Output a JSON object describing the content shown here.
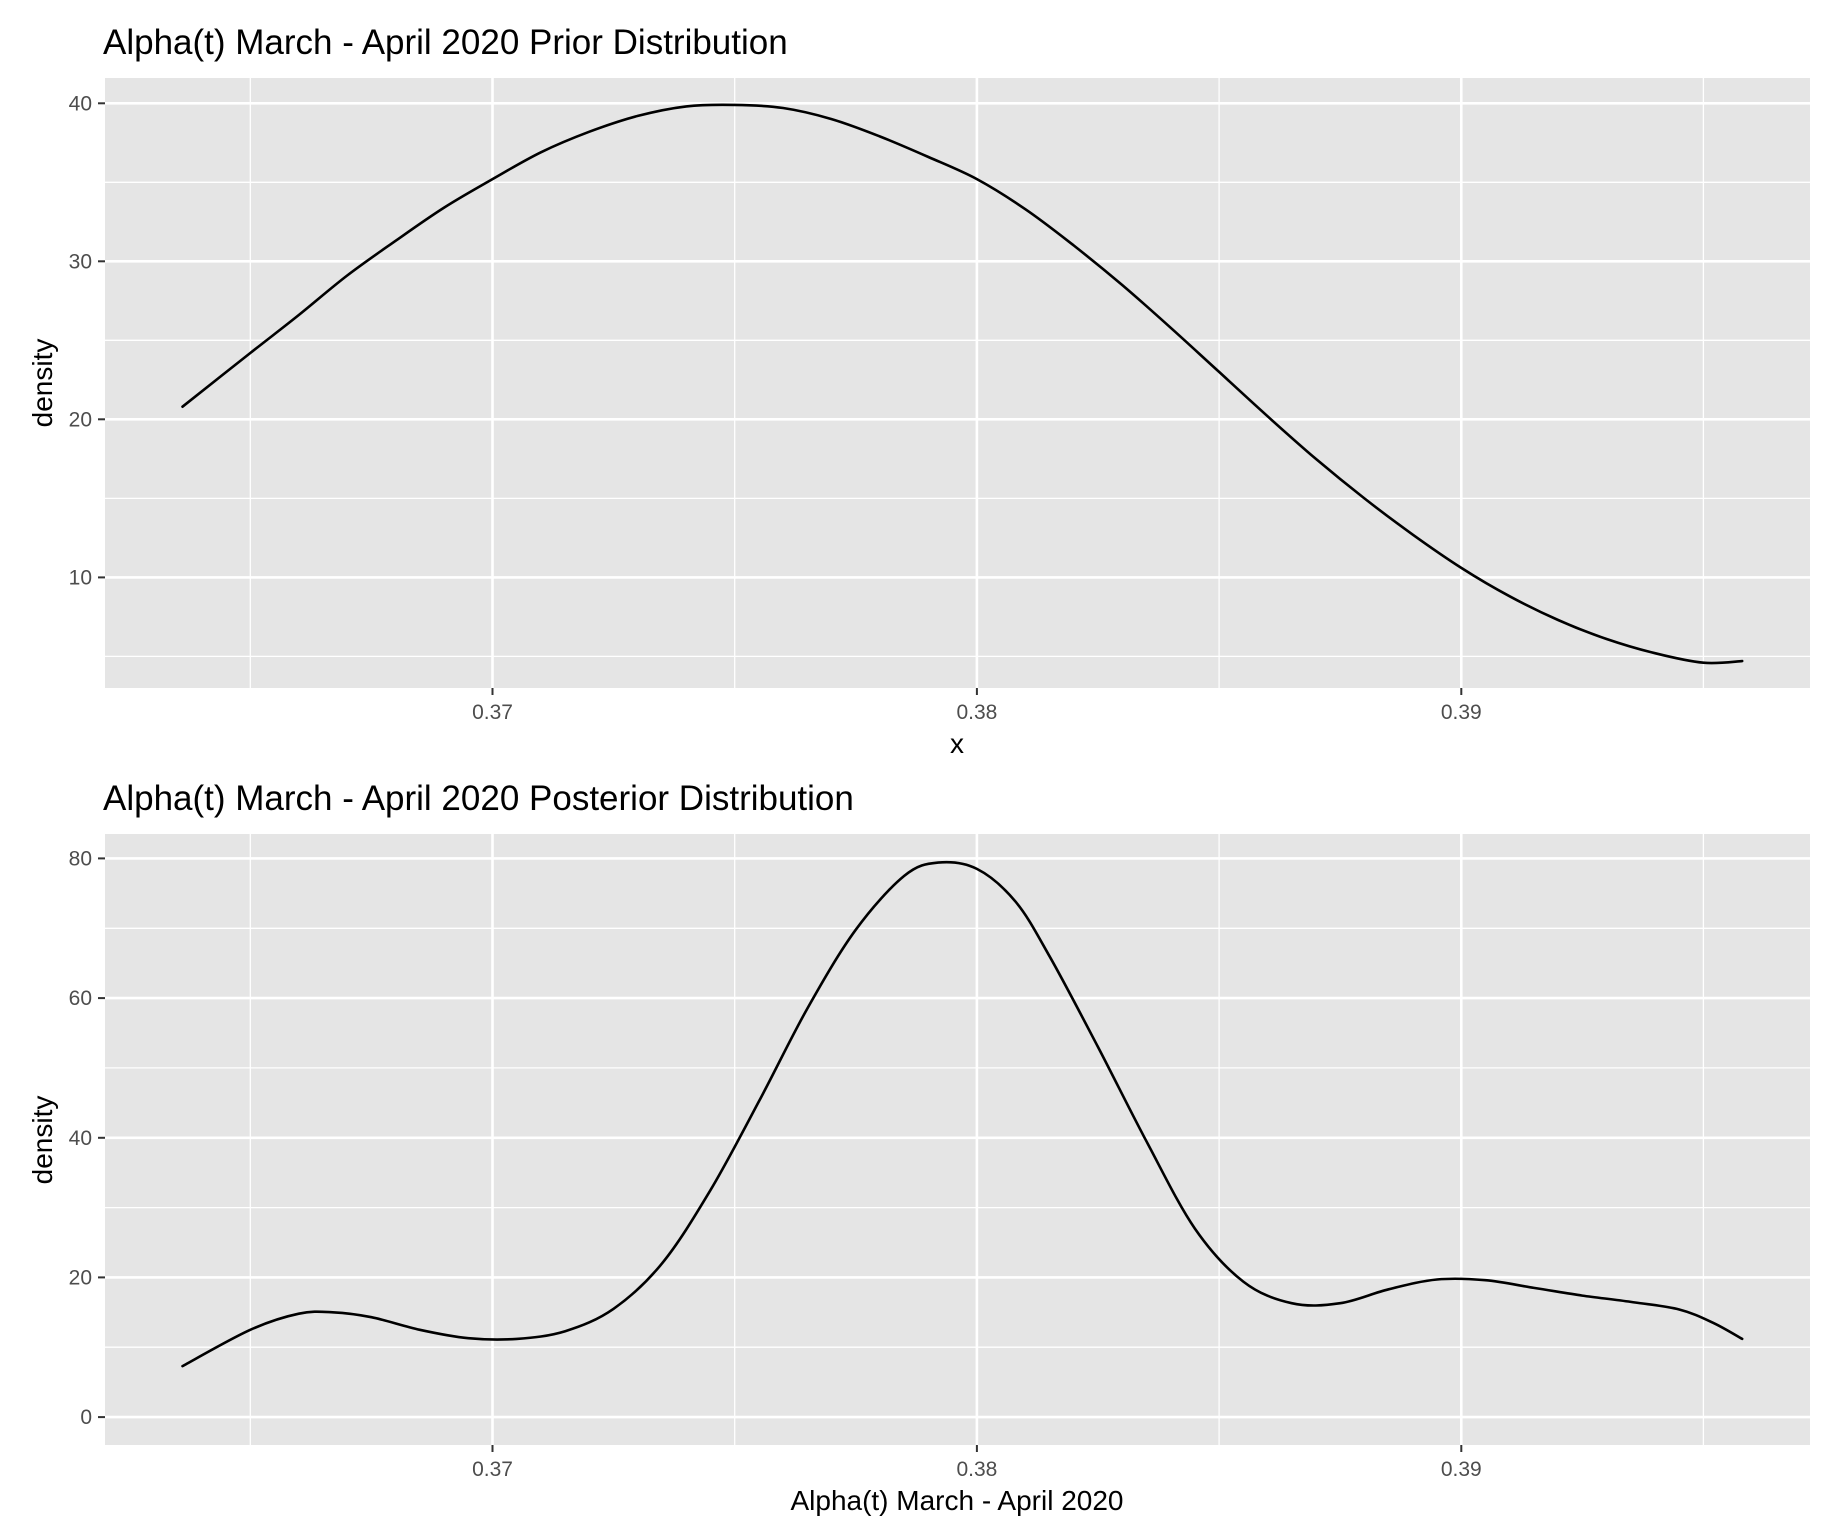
{
  "chart_data": [
    {
      "type": "line",
      "title": "Alpha(t) March - April 2020 Prior Distribution",
      "xlabel": "x",
      "ylabel": "density",
      "xlim": [
        0.362,
        0.3972
      ],
      "ylim": [
        3.0,
        41.6
      ],
      "x_ticks": [
        {
          "value": 0.37,
          "label": "0.37"
        },
        {
          "value": 0.38,
          "label": "0.38"
        },
        {
          "value": 0.39,
          "label": "0.39"
        }
      ],
      "x_minor": [
        0.365,
        0.375,
        0.385,
        0.395
      ],
      "y_ticks": [
        {
          "value": 10,
          "label": "10"
        },
        {
          "value": 20,
          "label": "20"
        },
        {
          "value": 30,
          "label": "30"
        },
        {
          "value": 40,
          "label": "40"
        }
      ],
      "y_minor": [
        5,
        15,
        25,
        35
      ],
      "grid": true,
      "legend": "none",
      "series": [
        {
          "x": [
            0.3636,
            0.365,
            0.366,
            0.367,
            0.368,
            0.369,
            0.37,
            0.371,
            0.372,
            0.373,
            0.374,
            0.375,
            0.376,
            0.377,
            0.378,
            0.379,
            0.38,
            0.381,
            0.382,
            0.383,
            0.384,
            0.385,
            0.386,
            0.387,
            0.388,
            0.389,
            0.39,
            0.391,
            0.392,
            0.393,
            0.394,
            0.395,
            0.3958
          ],
          "y": [
            20.8,
            24.2,
            26.6,
            29.1,
            31.3,
            33.4,
            35.2,
            36.9,
            38.2,
            39.2,
            39.8,
            39.9,
            39.7,
            39.0,
            37.9,
            36.6,
            35.2,
            33.3,
            31.0,
            28.5,
            25.8,
            23.0,
            20.2,
            17.5,
            15.0,
            12.7,
            10.6,
            8.8,
            7.3,
            6.1,
            5.2,
            4.6,
            4.7
          ]
        }
      ]
    },
    {
      "type": "line",
      "title": "Alpha(t) March - April 2020 Posterior Distribution",
      "xlabel": "Alpha(t) March - April 2020",
      "ylabel": "density",
      "xlim": [
        0.362,
        0.3972
      ],
      "ylim": [
        -4,
        83.5
      ],
      "x_ticks": [
        {
          "value": 0.37,
          "label": "0.37"
        },
        {
          "value": 0.38,
          "label": "0.38"
        },
        {
          "value": 0.39,
          "label": "0.39"
        }
      ],
      "x_minor": [
        0.365,
        0.375,
        0.385,
        0.395
      ],
      "y_ticks": [
        {
          "value": 0,
          "label": "0"
        },
        {
          "value": 20,
          "label": "20"
        },
        {
          "value": 40,
          "label": "40"
        },
        {
          "value": 60,
          "label": "60"
        },
        {
          "value": 80,
          "label": "80"
        }
      ],
      "y_minor": [
        10,
        30,
        50,
        70
      ],
      "grid": true,
      "legend": "none",
      "series": [
        {
          "x": [
            0.3636,
            0.365,
            0.366,
            0.3667,
            0.3675,
            0.3685,
            0.3695,
            0.3705,
            0.3715,
            0.3725,
            0.3735,
            0.3745,
            0.3755,
            0.3765,
            0.3775,
            0.3785,
            0.3792,
            0.38,
            0.3808,
            0.3815,
            0.3825,
            0.3835,
            0.3845,
            0.3855,
            0.3865,
            0.3875,
            0.3885,
            0.3895,
            0.3905,
            0.3915,
            0.3925,
            0.3935,
            0.3945,
            0.3952,
            0.3958
          ],
          "y": [
            7.3,
            12.5,
            14.8,
            15.0,
            14.3,
            12.5,
            11.3,
            11.2,
            12.3,
            15.5,
            22.0,
            32.5,
            45.2,
            58.5,
            69.8,
            77.5,
            79.4,
            78.5,
            73.8,
            66.0,
            53.0,
            39.5,
            27.0,
            19.4,
            16.3,
            16.3,
            18.3,
            19.7,
            19.6,
            18.5,
            17.4,
            16.5,
            15.4,
            13.5,
            11.2
          ]
        }
      ]
    }
  ]
}
